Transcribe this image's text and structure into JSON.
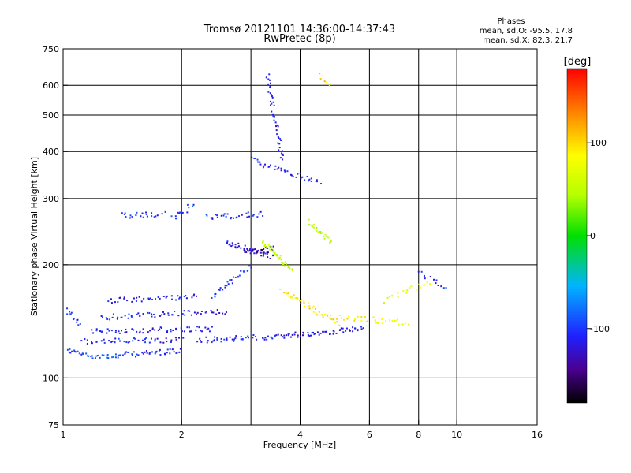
{
  "chart_data": {
    "type": "scatter",
    "title": "Tromsø 20121101 14:36:00-14:37:43",
    "subtitle": "RwPretec (8p)",
    "xlabel": "Frequency [MHz]",
    "ylabel": "Stationary phase Virtual Height [km]",
    "x_scale": "log",
    "y_scale": "log",
    "xlim": [
      1,
      16
    ],
    "ylim": [
      75,
      750
    ],
    "x_ticks": [
      1,
      2,
      4,
      6,
      8,
      10,
      16
    ],
    "x_tick_labels": [
      "1",
      "2",
      "4",
      "6",
      "8",
      "10",
      "16"
    ],
    "x_grid": [
      2,
      3,
      4,
      6,
      8,
      10
    ],
    "y_ticks": [
      75,
      100,
      200,
      300,
      400,
      500,
      600,
      750
    ],
    "y_tick_labels": [
      "75",
      "100",
      "200",
      "300",
      "400",
      "500",
      "600",
      "750"
    ],
    "y_grid": [
      100,
      200,
      300,
      400,
      500,
      600
    ],
    "grid": true,
    "stats": {
      "title": "Phases",
      "line_o": "mean, sd,O: -95.5, 17.8",
      "line_x": "mean, sd,X:  82.3, 21.7"
    },
    "colorbar": {
      "label": "[deg]",
      "range": [
        -180,
        180
      ],
      "ticks": [
        100,
        0,
        -100
      ],
      "tick_labels": [
        "100",
        "0",
        "-100"
      ],
      "colormap": "rainbow: black(-180) -> purple -> blue(-110) -> cyan(-45) -> green(0) -> yellow(90) -> orange -> red(180)"
    },
    "trace_segments": [
      {
        "f0": 1.02,
        "f1": 1.1,
        "h0": 152,
        "h1": 138,
        "phase": -105,
        "count": 14
      },
      {
        "f0": 1.02,
        "f1": 1.12,
        "h0": 118,
        "h1": 116,
        "phase": -95,
        "count": 12
      },
      {
        "f0": 1.12,
        "f1": 1.4,
        "h0": 115,
        "h1": 114,
        "phase": -88,
        "count": 22
      },
      {
        "f0": 1.4,
        "f1": 2.0,
        "h0": 115,
        "h1": 118,
        "phase": -110,
        "count": 40
      },
      {
        "f0": 1.12,
        "f1": 2.0,
        "h0": 125,
        "h1": 126,
        "phase": -108,
        "count": 45
      },
      {
        "f0": 1.18,
        "f1": 2.4,
        "h0": 133,
        "h1": 135,
        "phase": -112,
        "count": 60
      },
      {
        "f0": 1.25,
        "f1": 2.6,
        "h0": 145,
        "h1": 150,
        "phase": -110,
        "count": 60
      },
      {
        "f0": 1.3,
        "f1": 2.2,
        "h0": 160,
        "h1": 165,
        "phase": -112,
        "count": 40
      },
      {
        "f0": 2.2,
        "f1": 3.1,
        "h0": 126,
        "h1": 128,
        "phase": -105,
        "count": 35
      },
      {
        "f0": 3.2,
        "f1": 5.8,
        "h0": 128,
        "h1": 135,
        "phase": -112,
        "count": 70
      },
      {
        "f0": 1.4,
        "f1": 1.8,
        "h0": 270,
        "h1": 272,
        "phase": -100,
        "count": 22
      },
      {
        "f0": 1.9,
        "f1": 2.15,
        "h0": 265,
        "h1": 290,
        "phase": -98,
        "count": 14
      },
      {
        "f0": 2.3,
        "f1": 3.2,
        "h0": 268,
        "h1": 272,
        "phase": -105,
        "count": 30
      },
      {
        "f0": 2.6,
        "f1": 3.4,
        "h0": 230,
        "h1": 210,
        "phase": -115,
        "count": 40
      },
      {
        "f0": 2.9,
        "f1": 3.4,
        "h0": 215,
        "h1": 220,
        "phase": -140,
        "count": 25
      },
      {
        "f0": 3.3,
        "f1": 3.6,
        "h0": 640,
        "h1": 380,
        "phase": -110,
        "count": 45
      },
      {
        "f0": 3.0,
        "f1": 4.5,
        "h0": 380,
        "h1": 330,
        "phase": -110,
        "count": 40
      },
      {
        "f0": 3.2,
        "f1": 3.8,
        "h0": 230,
        "h1": 195,
        "phase": 55,
        "count": 40
      },
      {
        "f0": 3.6,
        "f1": 5.0,
        "h0": 170,
        "h1": 140,
        "phase": 95,
        "count": 45
      },
      {
        "f0": 4.2,
        "f1": 4.8,
        "h0": 260,
        "h1": 230,
        "phase": 45,
        "count": 22
      },
      {
        "f0": 5.0,
        "f1": 7.5,
        "h0": 145,
        "h1": 140,
        "phase": 85,
        "count": 30
      },
      {
        "f0": 6.5,
        "f1": 8.5,
        "h0": 160,
        "h1": 180,
        "phase": 70,
        "count": 18
      },
      {
        "f0": 8.0,
        "f1": 9.5,
        "h0": 190,
        "h1": 175,
        "phase": -110,
        "count": 12
      },
      {
        "f0": 4.5,
        "f1": 4.8,
        "h0": 640,
        "h1": 600,
        "phase": 100,
        "count": 8
      },
      {
        "f0": 2.4,
        "f1": 3.0,
        "h0": 165,
        "h1": 200,
        "phase": -105,
        "count": 30
      }
    ]
  }
}
